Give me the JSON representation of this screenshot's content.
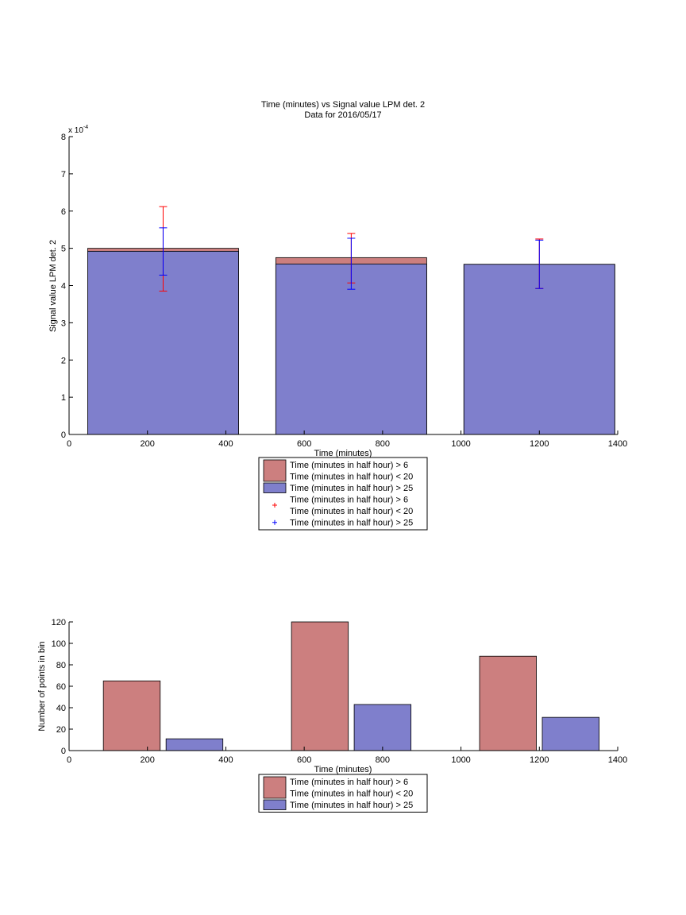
{
  "chart_data": [
    {
      "type": "bar",
      "title": "Time (minutes) vs Signal value LPM det. 2",
      "subtitle": "Data for 2016/05/17",
      "xlabel": "Time (minutes)",
      "ylabel": "Signal value LPM det. 2",
      "y_exponent_label": "x 10",
      "y_exponent_power": "-4",
      "xlim": [
        0,
        1400
      ],
      "ylim": [
        0,
        8
      ],
      "x_ticks": [
        0,
        200,
        400,
        600,
        800,
        1000,
        1200,
        1400
      ],
      "y_ticks": [
        0,
        1,
        2,
        3,
        4,
        5,
        6,
        7,
        8
      ],
      "grid": false,
      "bar_mode": "overlaid",
      "x": [
        240,
        720,
        1200
      ],
      "bar_width": 385,
      "series": [
        {
          "name": "Time (minutes in half hour) > 6\nTime (minutes in half hour) < 20",
          "color": "#cc7f7f",
          "values": [
            5.0,
            4.75,
            4.57
          ],
          "error_low": [
            3.85,
            4.07,
            3.92
          ],
          "error_high": [
            6.12,
            5.4,
            5.25
          ],
          "error_color": "#ff0000"
        },
        {
          "name": "Time (minutes in half hour) > 25",
          "color": "#7f7fcc",
          "values": [
            4.92,
            4.58,
            4.57
          ],
          "error_low": [
            4.28,
            3.9,
            3.92
          ],
          "error_high": [
            5.55,
            5.27,
            5.22
          ],
          "error_color": "#0000ff"
        }
      ],
      "legend": [
        {
          "kind": "patch",
          "color": "#cc7f7f",
          "lines": [
            "Time (minutes in half hour) > 6",
            "Time (minutes in half hour) < 20"
          ]
        },
        {
          "kind": "patch",
          "color": "#7f7fcc",
          "lines": [
            "Time (minutes in half hour) > 25"
          ]
        },
        {
          "kind": "marker",
          "color": "#ff0000",
          "lines": [
            "Time (minutes in half hour) > 6",
            "Time (minutes in half hour) < 20"
          ]
        },
        {
          "kind": "marker",
          "color": "#0000ff",
          "lines": [
            "Time (minutes in half hour) > 25"
          ]
        }
      ],
      "legend_position": "below plot"
    },
    {
      "type": "bar",
      "title": "",
      "xlabel": "Time (minutes)",
      "ylabel": "Number of points in bin",
      "xlim": [
        0,
        1400
      ],
      "ylim": [
        0,
        120
      ],
      "x_ticks": [
        0,
        200,
        400,
        600,
        800,
        1000,
        1200,
        1400
      ],
      "y_ticks": [
        0,
        20,
        40,
        60,
        80,
        100,
        120
      ],
      "grid": false,
      "bar_mode": "grouped",
      "bar_width": 145,
      "series": [
        {
          "name": "Time (minutes in half hour) > 6\nTime (minutes in half hour) < 20",
          "color": "#cc7f7f",
          "x": [
            160,
            640,
            1120
          ],
          "values": [
            65,
            120,
            88
          ]
        },
        {
          "name": "Time (minutes in half hour) > 25",
          "color": "#7f7fcc",
          "x": [
            320,
            800,
            1280
          ],
          "values": [
            11,
            43,
            31
          ]
        }
      ],
      "legend": [
        {
          "kind": "patch",
          "color": "#cc7f7f",
          "lines": [
            "Time (minutes in half hour) > 6",
            "Time (minutes in half hour) < 20"
          ]
        },
        {
          "kind": "patch",
          "color": "#7f7fcc",
          "lines": [
            "Time (minutes in half hour) > 25"
          ]
        }
      ],
      "legend_position": "below plot"
    }
  ]
}
